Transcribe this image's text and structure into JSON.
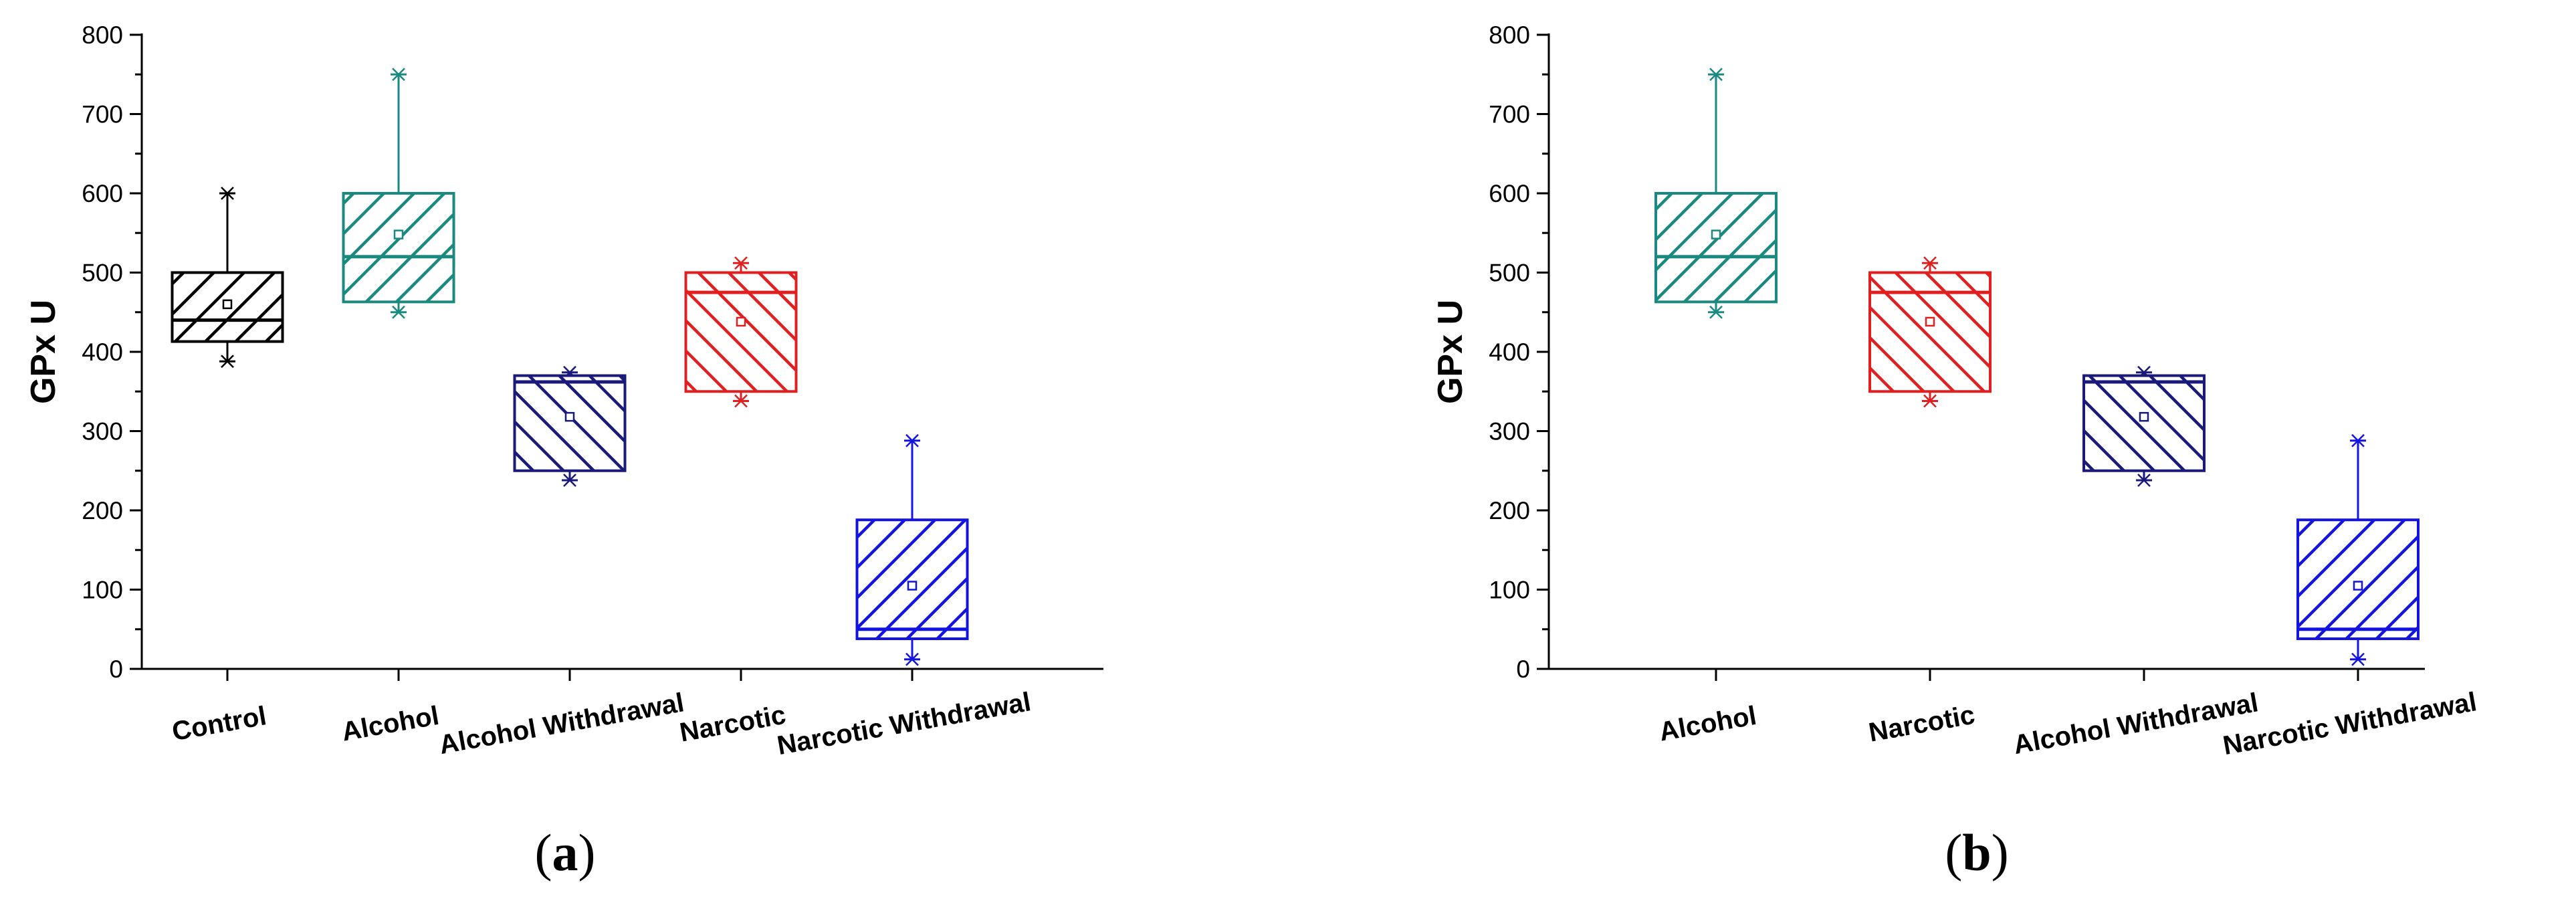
{
  "colors": {
    "control": "#000000",
    "alcohol": "#1a8a80",
    "alcohol_withdrawal": "#1a1a7a",
    "narcotic": "#e02020",
    "narcotic_withdrawal": "#1414e0",
    "axis": "#000000"
  },
  "panels": [
    {
      "label_open": "(",
      "label_letter": "a",
      "label_close": ")"
    },
    {
      "label_open": "(",
      "label_letter": "b",
      "label_close": ")"
    }
  ],
  "chart_data": [
    {
      "type": "box",
      "title": "",
      "xlabel": "",
      "ylabel": "GPx U",
      "ylim": [
        0,
        800
      ],
      "yticks": [
        "0",
        "100",
        "200",
        "300",
        "400",
        "500",
        "600",
        "700",
        "800"
      ],
      "categories": [
        "Control",
        "Alcohol",
        "Alcohol Withdrawal",
        "Narcotic",
        "Narcotic Withdrawal"
      ],
      "series": [
        {
          "key": "control",
          "min": 388,
          "q1": 413,
          "median": 440,
          "q3": 500,
          "max": 600,
          "mean": 460,
          "hatch": "back"
        },
        {
          "key": "alcohol",
          "min": 450,
          "q1": 463,
          "median": 520,
          "q3": 600,
          "max": 750,
          "mean": 548,
          "hatch": "back"
        },
        {
          "key": "alcohol_withdrawal",
          "min": 238,
          "q1": 250,
          "median": 362,
          "q3": 370,
          "max": 374,
          "mean": 318,
          "hatch": "fwd"
        },
        {
          "key": "narcotic",
          "min": 338,
          "q1": 350,
          "median": 475,
          "q3": 500,
          "max": 512,
          "mean": 438,
          "hatch": "fwd"
        },
        {
          "key": "narcotic_withdrawal",
          "min": 12,
          "q1": 38,
          "median": 50,
          "q3": 188,
          "max": 288,
          "mean": 105,
          "hatch": "back"
        }
      ]
    },
    {
      "type": "box",
      "title": "",
      "xlabel": "",
      "ylabel": "GPx U",
      "ylim": [
        0,
        800
      ],
      "yticks": [
        "0",
        "100",
        "200",
        "300",
        "400",
        "500",
        "600",
        "700",
        "800"
      ],
      "categories": [
        "Alcohol",
        "Narcotic",
        "Alcohol Withdrawal",
        "Narcotic Withdrawal"
      ],
      "series": [
        {
          "key": "alcohol",
          "min": 450,
          "q1": 463,
          "median": 520,
          "q3": 600,
          "max": 750,
          "mean": 548,
          "hatch": "back"
        },
        {
          "key": "narcotic",
          "min": 338,
          "q1": 350,
          "median": 475,
          "q3": 500,
          "max": 512,
          "mean": 438,
          "hatch": "fwd"
        },
        {
          "key": "alcohol_withdrawal",
          "min": 238,
          "q1": 250,
          "median": 362,
          "q3": 370,
          "max": 374,
          "mean": 318,
          "hatch": "fwd"
        },
        {
          "key": "narcotic_withdrawal",
          "min": 12,
          "q1": 38,
          "median": 50,
          "q3": 188,
          "max": 288,
          "mean": 105,
          "hatch": "back"
        }
      ]
    }
  ]
}
